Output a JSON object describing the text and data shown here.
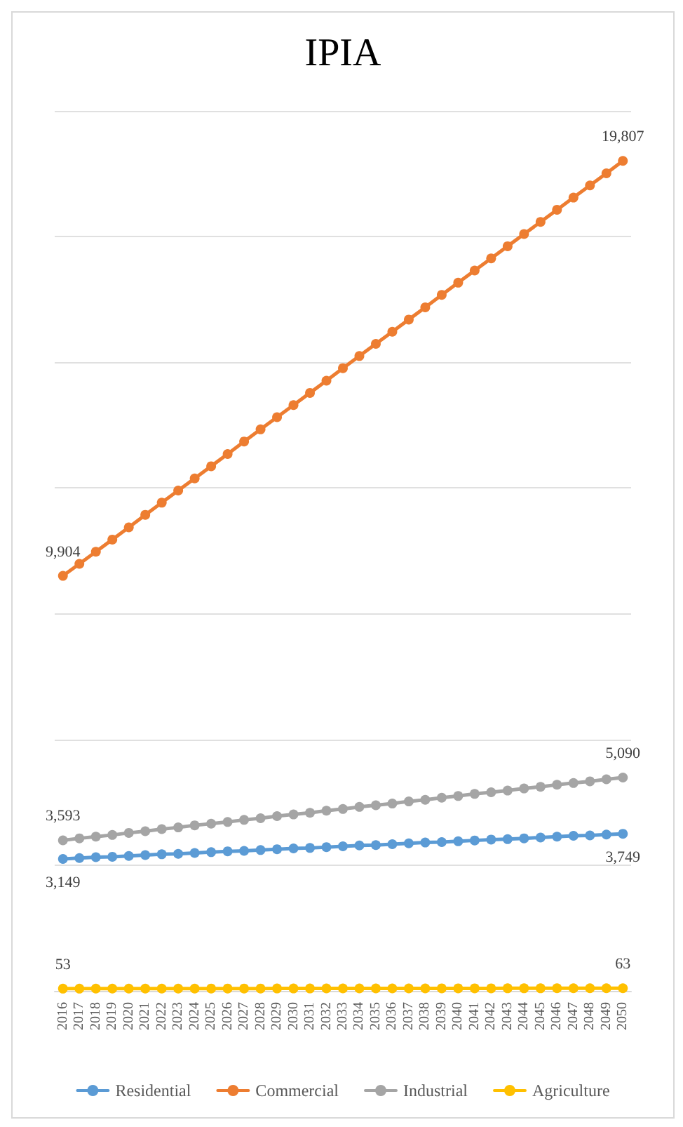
{
  "chart_data": {
    "type": "line",
    "title": "IPIA",
    "categories": [
      "2016",
      "2017",
      "2018",
      "2019",
      "2020",
      "2021",
      "2022",
      "2023",
      "2024",
      "2025",
      "2026",
      "2027",
      "2028",
      "2029",
      "2030",
      "2031",
      "2032",
      "2033",
      "2034",
      "2035",
      "2036",
      "2037",
      "2038",
      "2039",
      "2040",
      "2041",
      "2042",
      "2043",
      "2044",
      "2045",
      "2046",
      "2047",
      "2048",
      "2049",
      "2050"
    ],
    "series": [
      {
        "name": "Residential",
        "color": "#5b9bd5",
        "values": [
          3149,
          3170,
          3190,
          3200,
          3220,
          3240,
          3260,
          3270,
          3290,
          3310,
          3330,
          3340,
          3360,
          3380,
          3400,
          3410,
          3430,
          3450,
          3470,
          3480,
          3500,
          3520,
          3540,
          3550,
          3570,
          3590,
          3610,
          3620,
          3640,
          3660,
          3680,
          3700,
          3710,
          3730,
          3749
        ],
        "value_labels": [
          "3,149",
          null,
          null,
          null,
          null,
          null,
          null,
          null,
          null,
          null,
          null,
          null,
          null,
          null,
          null,
          null,
          null,
          null,
          null,
          null,
          null,
          null,
          null,
          null,
          null,
          null,
          null,
          null,
          null,
          null,
          null,
          null,
          null,
          null,
          "3,749"
        ]
      },
      {
        "name": "Commercial",
        "color": "#ed7d31",
        "values": [
          9904,
          10190,
          10480,
          10770,
          11060,
          11360,
          11650,
          11940,
          12230,
          12520,
          12810,
          13110,
          13400,
          13690,
          13980,
          14270,
          14560,
          14860,
          15150,
          15440,
          15730,
          16020,
          16310,
          16610,
          16900,
          17190,
          17480,
          17770,
          18060,
          18350,
          18640,
          18930,
          19220,
          19510,
          19807
        ],
        "value_labels": [
          "9,904",
          null,
          null,
          null,
          null,
          null,
          null,
          null,
          null,
          null,
          null,
          null,
          null,
          null,
          null,
          null,
          null,
          null,
          null,
          null,
          null,
          null,
          null,
          null,
          null,
          null,
          null,
          null,
          null,
          null,
          null,
          null,
          null,
          null,
          "19,807"
        ]
      },
      {
        "name": "Industrial",
        "color": "#a5a5a5",
        "values": [
          3593,
          3640,
          3680,
          3720,
          3770,
          3810,
          3860,
          3900,
          3950,
          3990,
          4030,
          4080,
          4120,
          4170,
          4210,
          4250,
          4300,
          4340,
          4390,
          4430,
          4470,
          4520,
          4560,
          4610,
          4650,
          4700,
          4740,
          4780,
          4830,
          4870,
          4920,
          4960,
          5000,
          5050,
          5090
        ],
        "value_labels": [
          "3,593",
          null,
          null,
          null,
          null,
          null,
          null,
          null,
          null,
          null,
          null,
          null,
          null,
          null,
          null,
          null,
          null,
          null,
          null,
          null,
          null,
          null,
          null,
          null,
          null,
          null,
          null,
          null,
          null,
          null,
          null,
          null,
          null,
          null,
          "5,090"
        ]
      },
      {
        "name": "Agriculture",
        "color": "#ffc000",
        "values": [
          53,
          53,
          54,
          54,
          54,
          54,
          55,
          55,
          55,
          56,
          56,
          56,
          56,
          57,
          57,
          57,
          58,
          58,
          58,
          58,
          59,
          59,
          59,
          60,
          60,
          60,
          60,
          61,
          61,
          61,
          62,
          62,
          62,
          63,
          63
        ],
        "value_labels": [
          "53",
          null,
          null,
          null,
          null,
          null,
          null,
          null,
          null,
          null,
          null,
          null,
          null,
          null,
          null,
          null,
          null,
          null,
          null,
          null,
          null,
          null,
          null,
          null,
          null,
          null,
          null,
          null,
          null,
          null,
          null,
          null,
          null,
          null,
          "63"
        ]
      }
    ],
    "tick_labels": "x",
    "grid": "y",
    "legend": "bottom",
    "marker": "circle",
    "line_style": "solid"
  }
}
